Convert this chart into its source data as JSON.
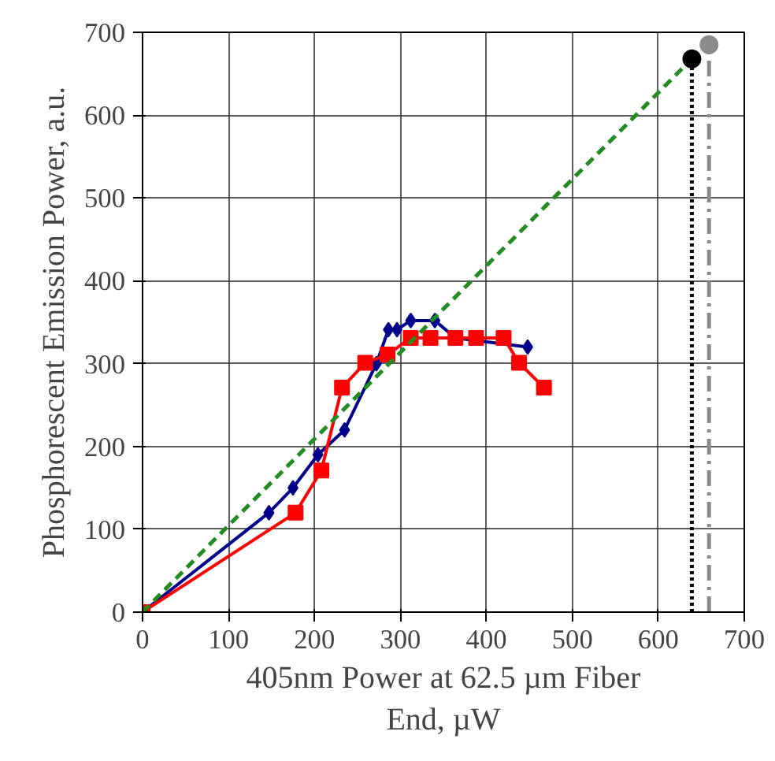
{
  "chart_data": {
    "type": "line",
    "xlabel": "405nm Power at 62.5 µm Fiber End, µW",
    "ylabel": "Phosphorescent Emission Power, a.u.",
    "xlim": [
      0,
      700
    ],
    "ylim": [
      0,
      700
    ],
    "xticks": [
      0,
      100,
      200,
      300,
      400,
      500,
      600,
      700
    ],
    "yticks": [
      0,
      100,
      200,
      300,
      400,
      500,
      600,
      700
    ],
    "grid": true,
    "series": [
      {
        "color": "#00008b",
        "marker": "diamond",
        "line_style": "solid",
        "x": [
          0,
          147,
          175,
          204,
          235,
          272,
          286,
          296,
          312,
          340,
          364,
          448
        ],
        "values": [
          0,
          120,
          150,
          190,
          220,
          300,
          341,
          341,
          352,
          352,
          331,
          320
        ]
      },
      {
        "color": "#ff0000",
        "marker": "square",
        "line_style": "solid",
        "x": [
          0,
          178,
          208,
          232,
          259,
          285,
          312,
          335,
          364,
          388,
          420,
          438,
          467
        ],
        "values": [
          0,
          120,
          171,
          271,
          301,
          311,
          331,
          331,
          331,
          331,
          331,
          301,
          271
        ]
      },
      {
        "color": "#228b22",
        "marker": "none",
        "line_style": "dashed",
        "x": [
          0,
          639
        ],
        "values": [
          0,
          668
        ]
      },
      {
        "color": "#000000",
        "marker": "none",
        "line_style": "dotted",
        "x": [
          639,
          639
        ],
        "values": [
          0,
          668
        ]
      },
      {
        "color": "#8c8c8c",
        "marker": "none",
        "line_style": "dashdot",
        "x": [
          659,
          659
        ],
        "values": [
          0,
          685
        ]
      },
      {
        "type": "scatter",
        "color": "#000000",
        "x": [
          639
        ],
        "values": [
          668
        ]
      },
      {
        "type": "scatter",
        "color": "#8c8c8c",
        "x": [
          659
        ],
        "values": [
          685
        ]
      }
    ]
  }
}
